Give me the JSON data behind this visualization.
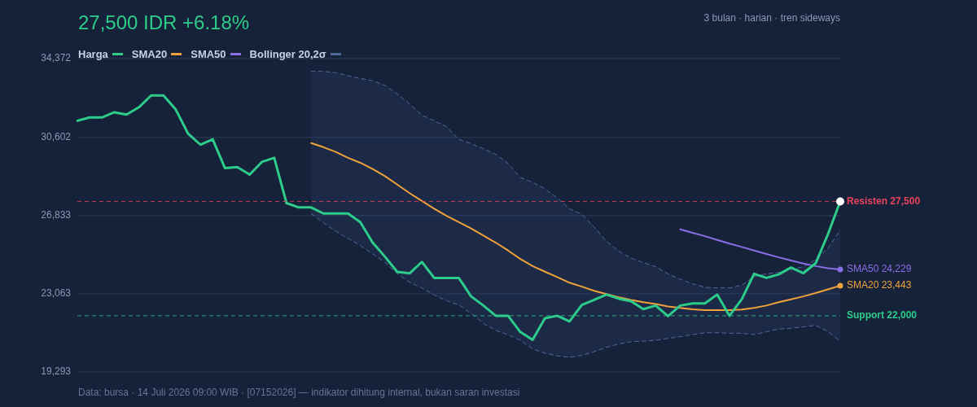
{
  "chart_data": {
    "type": "line",
    "title": "27,500 IDR +6.18%",
    "subtitle": "3 bulan · harian · tren sideways",
    "annotations": [
      "Data: bursa · 14 Juli 2026 09:00 WIB · [07152026] — indikator dihitung internal, bukan saran investasi"
    ],
    "categories": [
      null,
      null,
      null,
      null,
      null,
      null,
      null,
      null,
      null,
      null,
      null,
      null,
      null,
      null,
      null,
      null,
      null,
      null,
      null,
      null,
      null,
      null,
      null,
      null,
      null,
      null,
      null,
      null,
      null,
      null,
      null,
      null,
      null,
      null,
      null,
      null,
      null,
      null,
      null,
      null,
      null,
      null,
      null,
      null,
      null,
      null,
      null,
      null,
      null,
      null,
      null,
      null,
      null,
      null,
      null,
      null,
      null,
      null,
      null,
      null,
      null,
      null,
      null
    ],
    "ylim": [
      19293,
      34372
    ],
    "yticks": [
      {
        "value": 19293,
        "label": "19,293"
      },
      {
        "value": 23063,
        "label": "23,063"
      },
      {
        "value": 26833,
        "label": "26,833"
      },
      {
        "value": 30602,
        "label": "30,602"
      },
      {
        "value": 34372,
        "label": "34,372"
      }
    ],
    "grid": "y",
    "tick_labels": "y",
    "legend": "top left",
    "marker": "none",
    "ref_lines": [
      {
        "axis": "y",
        "value": 27500,
        "label": "Resisten 27,500",
        "color": "#e8435c",
        "line_style": "dashed"
      },
      {
        "axis": "y",
        "value": 22000,
        "label": "Support 22,000",
        "color": "#2ecc8a",
        "line_style": "dashed"
      }
    ],
    "series": [
      {
        "name": "Harga",
        "color": "#2ecc8a",
        "line_style": "solid",
        "values": [
          31380,
          31540,
          31540,
          31790,
          31680,
          32030,
          32600,
          32600,
          31920,
          30760,
          30230,
          30490,
          29100,
          29150,
          28790,
          29400,
          29600,
          27420,
          27210,
          27210,
          26920,
          26920,
          26920,
          26500,
          25520,
          24840,
          24110,
          24040,
          24590,
          23820,
          23820,
          23820,
          22930,
          22490,
          22000,
          22000,
          21220,
          20840,
          21880,
          22000,
          21730,
          22520,
          22760,
          23020,
          22820,
          22700,
          22320,
          22490,
          21980,
          22490,
          22590,
          22590,
          23020,
          22000,
          22790,
          24020,
          23820,
          23990,
          24320,
          24050,
          24520,
          25920,
          27500
        ]
      },
      {
        "name": "SMA20",
        "color": "#f0a23a",
        "line_style": "solid",
        "values": [
          null,
          null,
          null,
          null,
          null,
          null,
          null,
          null,
          null,
          null,
          null,
          null,
          null,
          null,
          null,
          null,
          null,
          null,
          null,
          30310,
          30110,
          29880,
          29600,
          29360,
          29060,
          28720,
          28310,
          27900,
          27520,
          27150,
          26810,
          26500,
          26200,
          25860,
          25520,
          25140,
          24730,
          24390,
          24120,
          23860,
          23590,
          23400,
          23200,
          23040,
          22890,
          22760,
          22650,
          22560,
          22450,
          22380,
          22310,
          22270,
          22270,
          22270,
          22300,
          22380,
          22490,
          22650,
          22790,
          22930,
          23090,
          23270,
          23443
        ],
        "upper": [
          null,
          null,
          null,
          null,
          null,
          null,
          null,
          null,
          null,
          null,
          null,
          null,
          null,
          null,
          null,
          null,
          null,
          null,
          null,
          33760,
          33760,
          33690,
          33550,
          33420,
          33310,
          33080,
          32670,
          32190,
          31650,
          31380,
          31100,
          30490,
          30280,
          30040,
          29770,
          29330,
          28650,
          28420,
          28110,
          27670,
          27150,
          26880,
          26270,
          25580,
          25110,
          24770,
          24560,
          24360,
          24020,
          23750,
          23540,
          23370,
          23340,
          23340,
          23470,
          23880,
          24020,
          24090,
          24220,
          24360,
          24700,
          25240,
          26130
        ],
        "lower": [
          null,
          null,
          null,
          null,
          null,
          null,
          null,
          null,
          null,
          null,
          null,
          null,
          null,
          null,
          null,
          null,
          null,
          null,
          null,
          26910,
          26470,
          26060,
          25720,
          25380,
          24970,
          24560,
          24020,
          23610,
          23340,
          23000,
          22720,
          22520,
          22110,
          21630,
          21290,
          21090,
          20820,
          20400,
          20200,
          20070,
          20000,
          20090,
          20270,
          20480,
          20640,
          20750,
          20780,
          20820,
          20910,
          20990,
          21090,
          21180,
          21180,
          21160,
          21160,
          21090,
          21230,
          21360,
          21400,
          21460,
          21540,
          21230,
          20780
        ],
        "value_labels": [
          null,
          null,
          null,
          null,
          null,
          null,
          null,
          null,
          null,
          null,
          null,
          null,
          null,
          null,
          null,
          null,
          null,
          null,
          null,
          null,
          null,
          null,
          null,
          null,
          null,
          null,
          null,
          null,
          null,
          null,
          null,
          null,
          null,
          null,
          null,
          null,
          null,
          null,
          null,
          null,
          null,
          null,
          null,
          null,
          null,
          null,
          null,
          null,
          null,
          null,
          null,
          null,
          null,
          null,
          null,
          null,
          null,
          null,
          null,
          null,
          null,
          null,
          "23,443"
        ]
      },
      {
        "name": "SMA50",
        "color": "#8a6ee6",
        "line_style": "solid",
        "values": [
          null,
          null,
          null,
          null,
          null,
          null,
          null,
          null,
          null,
          null,
          null,
          null,
          null,
          null,
          null,
          null,
          null,
          null,
          null,
          null,
          null,
          null,
          null,
          null,
          null,
          null,
          null,
          null,
          null,
          null,
          null,
          null,
          null,
          null,
          null,
          null,
          null,
          null,
          null,
          null,
          null,
          null,
          null,
          null,
          null,
          null,
          null,
          null,
          null,
          26160,
          25990,
          25830,
          25650,
          25470,
          25310,
          25140,
          24970,
          24810,
          24660,
          24510,
          24390,
          24290,
          24229
        ],
        "value_labels": [
          null,
          null,
          null,
          null,
          null,
          null,
          null,
          null,
          null,
          null,
          null,
          null,
          null,
          null,
          null,
          null,
          null,
          null,
          null,
          null,
          null,
          null,
          null,
          null,
          null,
          null,
          null,
          null,
          null,
          null,
          null,
          null,
          null,
          null,
          null,
          null,
          null,
          null,
          null,
          null,
          null,
          null,
          null,
          null,
          null,
          null,
          null,
          null,
          null,
          null,
          null,
          null,
          null,
          null,
          null,
          null,
          null,
          null,
          null,
          null,
          null,
          null,
          "24,229"
        ]
      },
      {
        "name": "Bollinger 20,2σ",
        "color": "#4d6a99",
        "line_style": "dashed",
        "values": [
          null,
          null,
          null,
          null,
          null,
          null,
          null,
          null,
          null,
          null,
          null,
          null,
          null,
          null,
          null,
          null,
          null,
          null,
          null,
          33760,
          33760,
          33690,
          33550,
          33420,
          33310,
          33080,
          32670,
          32190,
          31650,
          31380,
          31100,
          30490,
          30280,
          30040,
          29770,
          29330,
          28650,
          28420,
          28110,
          27670,
          27150,
          26880,
          26270,
          25580,
          25110,
          24770,
          24560,
          24360,
          24020,
          23750,
          23540,
          23370,
          23340,
          23340,
          23470,
          23880,
          24020,
          24090,
          24220,
          24360,
          24700,
          25240,
          26130
        ]
      },
      {
        "color": "#4d6a99",
        "line_style": "dashed",
        "values": [
          null,
          null,
          null,
          null,
          null,
          null,
          null,
          null,
          null,
          null,
          null,
          null,
          null,
          null,
          null,
          null,
          null,
          null,
          null,
          26910,
          26470,
          26060,
          25720,
          25380,
          24970,
          24560,
          24020,
          23610,
          23340,
          23000,
          22720,
          22520,
          22110,
          21630,
          21290,
          21090,
          20820,
          20400,
          20200,
          20070,
          20000,
          20090,
          20270,
          20480,
          20640,
          20750,
          20780,
          20820,
          20910,
          20990,
          21090,
          21180,
          21180,
          21160,
          21160,
          21090,
          21230,
          21360,
          21400,
          21460,
          21540,
          21230,
          20780
        ]
      }
    ]
  }
}
